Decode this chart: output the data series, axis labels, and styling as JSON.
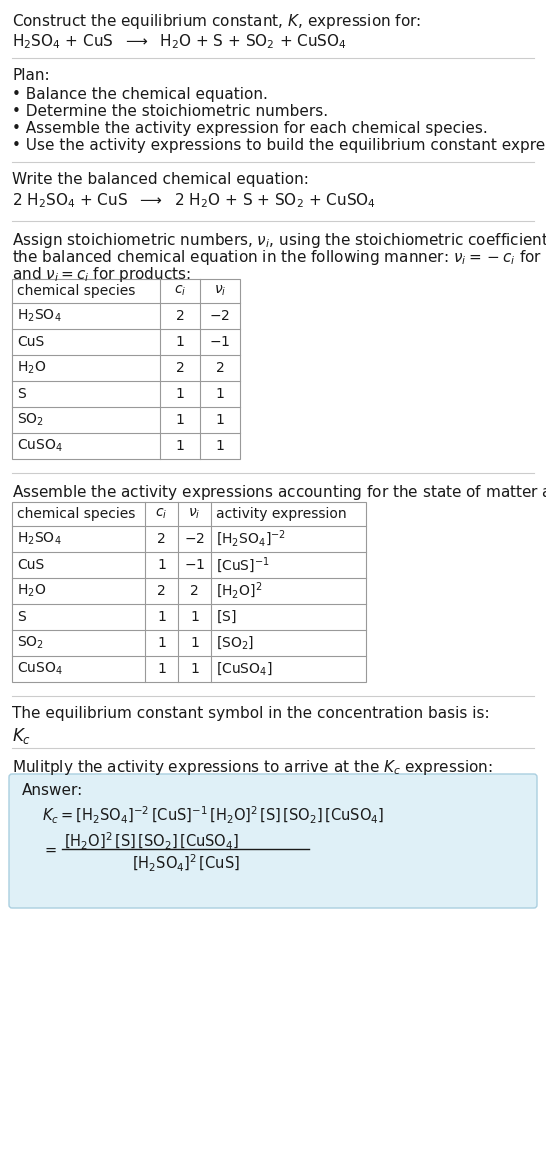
{
  "bg_color": "#ffffff",
  "text_color": "#1a1a1a",
  "light_gray": "#cccccc",
  "table_border": "#999999",
  "answer_box_color": "#dff0f7",
  "answer_box_edge": "#aacfe0",
  "title_line1": "Construct the equilibrium constant, $K$, expression for:",
  "title_line2_parts": [
    "$\\mathregular{H_2SO_4}$",
    " + CuS  ",
    "$\\longrightarrow$",
    "  $\\mathregular{H_2O}$ + S + $\\mathregular{SO_2}$ + $\\mathregular{CuSO_4}$"
  ],
  "plan_header": "Plan:",
  "plan_items": [
    "• Balance the chemical equation.",
    "• Determine the stoichiometric numbers.",
    "• Assemble the activity expression for each chemical species.",
    "• Use the activity expressions to build the equilibrium constant expression."
  ],
  "balanced_header": "Write the balanced chemical equation:",
  "stoich_header_line1": "Assign stoichiometric numbers, $\\nu_i$, using the stoichiometric coefficients, $c_i$, from",
  "stoich_header_line2": "the balanced chemical equation in the following manner: $\\nu_i = -c_i$ for reactants",
  "stoich_header_line3": "and $\\nu_i = c_i$ for products:",
  "table1_cols": [
    "chemical species",
    "$c_i$",
    "$\\nu_i$"
  ],
  "table1_data": [
    [
      "$\\mathregular{H_2SO_4}$",
      "2",
      "$-2$"
    ],
    [
      "CuS",
      "1",
      "$-1$"
    ],
    [
      "$\\mathregular{H_2O}$",
      "2",
      "2"
    ],
    [
      "S",
      "1",
      "1"
    ],
    [
      "$\\mathregular{SO_2}$",
      "1",
      "1"
    ],
    [
      "$\\mathregular{CuSO_4}$",
      "1",
      "1"
    ]
  ],
  "activity_header": "Assemble the activity expressions accounting for the state of matter and $\\nu_i$:",
  "table2_cols": [
    "chemical species",
    "$c_i$",
    "$\\nu_i$",
    "activity expression"
  ],
  "table2_data": [
    [
      "$\\mathregular{H_2SO_4}$",
      "2",
      "$-2$",
      "$[\\mathregular{H_2SO_4}]^{-2}$"
    ],
    [
      "CuS",
      "1",
      "$-1$",
      "$[\\mathrm{CuS}]^{-1}$"
    ],
    [
      "$\\mathregular{H_2O}$",
      "2",
      "2",
      "$[\\mathregular{H_2O}]^{2}$"
    ],
    [
      "S",
      "1",
      "1",
      "$[\\mathrm{S}]$"
    ],
    [
      "$\\mathregular{SO_2}$",
      "1",
      "1",
      "$[\\mathregular{SO_2}]$"
    ],
    [
      "$\\mathregular{CuSO_4}$",
      "1",
      "1",
      "$[\\mathregular{CuSO_4}]$"
    ]
  ],
  "kc_header": "The equilibrium constant symbol in the concentration basis is:",
  "kc_symbol": "$K_c$",
  "multiply_header": "Mulitply the activity expressions to arrive at the $K_c$ expression:",
  "answer_label": "Answer:",
  "answer_line1": "$K_c = [\\mathregular{H_2SO_4}]^{-2}\\,[\\mathrm{CuS}]^{-1}\\,[\\mathregular{H_2O}]^{2}\\,[\\mathrm{S}]\\,[\\mathregular{SO_2}]\\,[\\mathregular{CuSO_4}]$",
  "answer_numerator": "$[\\mathregular{H_2O}]^{2}\\,[\\mathrm{S}]\\,[\\mathregular{SO_2}]\\,[\\mathregular{CuSO_4}]$",
  "answer_denominator": "$[\\mathregular{H_2SO_4}]^{2}\\,[\\mathrm{CuS}]$"
}
